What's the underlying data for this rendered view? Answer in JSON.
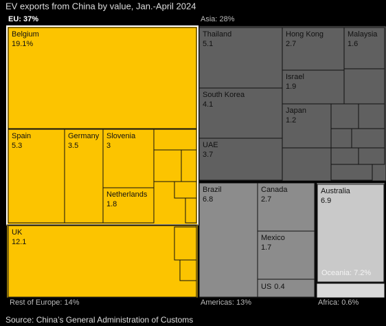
{
  "chart_data": {
    "type": "treemap",
    "title": "EV exports from China by value, Jan.-April 2024",
    "source": "Source: China’s General Administration of Customs",
    "groups": [
      {
        "label": "EU: 37%",
        "color": "#fcc400",
        "children": [
          {
            "name": "Belgium",
            "value": 19.1,
            "value_label": "19.1%"
          },
          {
            "name": "Spain",
            "value": 5.3
          },
          {
            "name": "Germany",
            "value": 3.5
          },
          {
            "name": "Slovenia",
            "value": 3
          },
          {
            "name": "Netherlands",
            "value": 1.8
          }
        ]
      },
      {
        "label": "Rest of Europe: 14%",
        "color": "#fcc400",
        "children": [
          {
            "name": "UK",
            "value": 12.1
          }
        ]
      },
      {
        "label": "Asia: 28%",
        "color": "#606060",
        "children": [
          {
            "name": "Thailand",
            "value": 5.1
          },
          {
            "name": "Hong Kong",
            "value": 2.7
          },
          {
            "name": "Malaysia",
            "value": 1.6
          },
          {
            "name": "Israel",
            "value": 1.9
          },
          {
            "name": "South Korea",
            "value": 4.1
          },
          {
            "name": "Japan",
            "value": 1.2
          },
          {
            "name": "UAE",
            "value": 3.7
          }
        ]
      },
      {
        "label": "Americas: 13%",
        "color": "#8c8c8c",
        "children": [
          {
            "name": "Brazil",
            "value": 6.8
          },
          {
            "name": "Canada",
            "value": 2.7
          },
          {
            "name": "Mexico",
            "value": 1.7
          },
          {
            "name": "US",
            "value": 0.4
          }
        ]
      },
      {
        "label": "Oceania: 7.2%",
        "color": "#c9c9c9",
        "children": [
          {
            "name": "Australia",
            "value": 6.9
          }
        ]
      },
      {
        "label": "Africa: 0.6%",
        "color": "#d9d9d9",
        "children": []
      }
    ]
  }
}
